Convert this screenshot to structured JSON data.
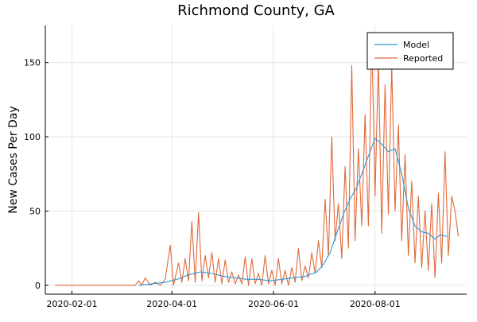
{
  "chart_data": {
    "type": "line",
    "title": "Richmond County, GA",
    "xlabel": "",
    "ylabel": "New Cases Per Day",
    "x_type": "date",
    "xlim": [
      "2020-01-16",
      "2020-09-25"
    ],
    "ylim": [
      -6,
      175
    ],
    "x_ticks": [
      "2020-02-01",
      "2020-04-01",
      "2020-06-01",
      "2020-08-01"
    ],
    "y_ticks": [
      0,
      50,
      100,
      150
    ],
    "grid": true,
    "legend_position": "top-right",
    "series": [
      {
        "name": "Model",
        "color": "#2a9ad6",
        "points": [
          [
            "2020-03-12",
            0
          ],
          [
            "2020-03-20",
            1
          ],
          [
            "2020-03-28",
            2
          ],
          [
            "2020-04-04",
            4
          ],
          [
            "2020-04-11",
            7
          ],
          [
            "2020-04-18",
            9
          ],
          [
            "2020-04-25",
            8
          ],
          [
            "2020-05-02",
            6
          ],
          [
            "2020-05-09",
            5
          ],
          [
            "2020-05-16",
            4
          ],
          [
            "2020-05-23",
            4
          ],
          [
            "2020-05-30",
            3
          ],
          [
            "2020-06-06",
            4
          ],
          [
            "2020-06-13",
            5
          ],
          [
            "2020-06-20",
            6
          ],
          [
            "2020-06-27",
            9
          ],
          [
            "2020-07-01",
            14
          ],
          [
            "2020-07-05",
            22
          ],
          [
            "2020-07-09",
            35
          ],
          [
            "2020-07-13",
            48
          ],
          [
            "2020-07-17",
            58
          ],
          [
            "2020-07-21",
            66
          ],
          [
            "2020-07-25",
            78
          ],
          [
            "2020-07-29",
            90
          ],
          [
            "2020-08-01",
            99
          ],
          [
            "2020-08-05",
            95
          ],
          [
            "2020-08-09",
            90
          ],
          [
            "2020-08-13",
            92
          ],
          [
            "2020-08-17",
            75
          ],
          [
            "2020-08-21",
            52
          ],
          [
            "2020-08-25",
            40
          ],
          [
            "2020-08-29",
            36
          ],
          [
            "2020-09-02",
            35
          ],
          [
            "2020-09-06",
            31
          ],
          [
            "2020-09-09",
            34
          ],
          [
            "2020-09-13",
            33
          ]
        ]
      },
      {
        "name": "Reported",
        "color": "#e0693a",
        "points": [
          [
            "2020-01-22",
            0
          ],
          [
            "2020-03-10",
            0
          ],
          [
            "2020-03-12",
            3
          ],
          [
            "2020-03-14",
            0
          ],
          [
            "2020-03-16",
            5
          ],
          [
            "2020-03-19",
            0
          ],
          [
            "2020-03-22",
            2
          ],
          [
            "2020-03-25",
            0
          ],
          [
            "2020-03-28",
            4
          ],
          [
            "2020-03-31",
            27
          ],
          [
            "2020-04-02",
            0
          ],
          [
            "2020-04-05",
            15
          ],
          [
            "2020-04-07",
            2
          ],
          [
            "2020-04-09",
            18
          ],
          [
            "2020-04-11",
            3
          ],
          [
            "2020-04-13",
            43
          ],
          [
            "2020-04-15",
            2
          ],
          [
            "2020-04-17",
            49
          ],
          [
            "2020-04-19",
            3
          ],
          [
            "2020-04-21",
            20
          ],
          [
            "2020-04-23",
            5
          ],
          [
            "2020-04-25",
            22
          ],
          [
            "2020-04-27",
            2
          ],
          [
            "2020-04-29",
            18
          ],
          [
            "2020-05-01",
            1
          ],
          [
            "2020-05-03",
            17
          ],
          [
            "2020-05-05",
            2
          ],
          [
            "2020-05-07",
            9
          ],
          [
            "2020-05-09",
            1
          ],
          [
            "2020-05-11",
            7
          ],
          [
            "2020-05-13",
            1
          ],
          [
            "2020-05-15",
            19
          ],
          [
            "2020-05-17",
            0
          ],
          [
            "2020-05-19",
            18
          ],
          [
            "2020-05-21",
            1
          ],
          [
            "2020-05-23",
            8
          ],
          [
            "2020-05-25",
            0
          ],
          [
            "2020-05-27",
            20
          ],
          [
            "2020-05-29",
            1
          ],
          [
            "2020-05-31",
            10
          ],
          [
            "2020-06-02",
            0
          ],
          [
            "2020-06-04",
            18
          ],
          [
            "2020-06-06",
            1
          ],
          [
            "2020-06-08",
            10
          ],
          [
            "2020-06-10",
            0
          ],
          [
            "2020-06-12",
            12
          ],
          [
            "2020-06-14",
            2
          ],
          [
            "2020-06-16",
            25
          ],
          [
            "2020-06-18",
            3
          ],
          [
            "2020-06-20",
            13
          ],
          [
            "2020-06-22",
            5
          ],
          [
            "2020-06-24",
            22
          ],
          [
            "2020-06-26",
            8
          ],
          [
            "2020-06-28",
            30
          ],
          [
            "2020-06-30",
            12
          ],
          [
            "2020-07-02",
            58
          ],
          [
            "2020-07-04",
            20
          ],
          [
            "2020-07-06",
            100
          ],
          [
            "2020-07-08",
            30
          ],
          [
            "2020-07-10",
            55
          ],
          [
            "2020-07-12",
            18
          ],
          [
            "2020-07-14",
            80
          ],
          [
            "2020-07-16",
            25
          ],
          [
            "2020-07-18",
            148
          ],
          [
            "2020-07-20",
            30
          ],
          [
            "2020-07-22",
            92
          ],
          [
            "2020-07-24",
            40
          ],
          [
            "2020-07-26",
            115
          ],
          [
            "2020-07-28",
            40
          ],
          [
            "2020-07-30",
            170
          ],
          [
            "2020-08-01",
            60
          ],
          [
            "2020-08-03",
            152
          ],
          [
            "2020-08-05",
            35
          ],
          [
            "2020-08-07",
            135
          ],
          [
            "2020-08-09",
            48
          ],
          [
            "2020-08-11",
            148
          ],
          [
            "2020-08-13",
            50
          ],
          [
            "2020-08-15",
            108
          ],
          [
            "2020-08-17",
            30
          ],
          [
            "2020-08-19",
            88
          ],
          [
            "2020-08-21",
            20
          ],
          [
            "2020-08-23",
            70
          ],
          [
            "2020-08-25",
            15
          ],
          [
            "2020-08-27",
            60
          ],
          [
            "2020-08-29",
            12
          ],
          [
            "2020-08-31",
            50
          ],
          [
            "2020-09-02",
            10
          ],
          [
            "2020-09-04",
            55
          ],
          [
            "2020-09-06",
            5
          ],
          [
            "2020-09-08",
            62
          ],
          [
            "2020-09-10",
            15
          ],
          [
            "2020-09-12",
            90
          ],
          [
            "2020-09-14",
            20
          ],
          [
            "2020-09-16",
            60
          ],
          [
            "2020-09-18",
            50
          ],
          [
            "2020-09-20",
            33
          ]
        ]
      }
    ]
  }
}
